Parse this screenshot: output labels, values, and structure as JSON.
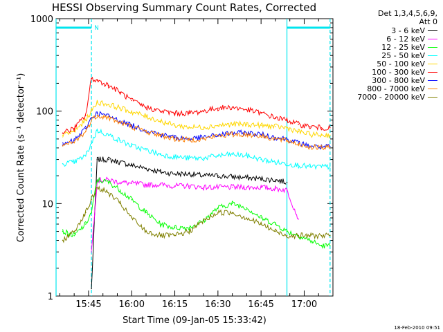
{
  "chart_data": {
    "type": "line",
    "title": "HESSI Observing Summary Count Rates, Corrected",
    "xlabel": "Start Time (09-Jan-05 15:33:42)",
    "ylabel": "Corrected Count Rate (s⁻¹ detector⁻¹)",
    "y_scale": "log",
    "ylim": [
      1,
      1000
    ],
    "xlim": [
      "15:33:42",
      "17:10:00"
    ],
    "x_tick_labels": [
      "15:45",
      "16:00",
      "16:15",
      "16:30",
      "16:45",
      "17:00"
    ],
    "y_tick_labels": [
      "1",
      "10",
      "100",
      "1000"
    ],
    "legend_header": [
      "Det 1,3,4,5,6,9,",
      "Att 0"
    ],
    "legend_position": "top-right",
    "markers": [
      {
        "type": "bar",
        "x_start": "15:33:42",
        "x_end": "15:46:00",
        "y": 800,
        "color": "#00e5ee",
        "label": "N"
      },
      {
        "type": "bar",
        "x_start": "16:54:00",
        "x_end": "17:09:00",
        "y": 800,
        "color": "#00e5ee",
        "label": ""
      }
    ],
    "vertical_lines": [
      {
        "x": "15:46:00",
        "style": "dashed",
        "color": "#00e5ee"
      },
      {
        "x": "16:54:00",
        "style": "solid",
        "color": "#00e5ee"
      },
      {
        "x": "17:09:00",
        "style": "dashed",
        "color": "#00e5ee"
      }
    ],
    "time_points": [
      "15:36",
      "15:40",
      "15:44",
      "15:46",
      "15:48",
      "15:52",
      "15:56",
      "16:00",
      "16:05",
      "16:10",
      "16:15",
      "16:20",
      "16:25",
      "16:30",
      "16:35",
      "16:40",
      "16:45",
      "16:50",
      "16:54",
      "16:58",
      "17:02",
      "17:06",
      "17:09"
    ],
    "series": [
      {
        "name": "3 - 6 keV",
        "color": "#000000",
        "values": [
          null,
          null,
          null,
          1.2,
          30,
          30,
          28,
          26,
          24,
          22,
          21,
          21,
          20,
          20,
          19.5,
          19,
          18.5,
          18,
          17,
          null,
          null,
          null,
          null
        ]
      },
      {
        "name": "6 - 12 keV",
        "color": "#ff00ff",
        "values": [
          null,
          null,
          null,
          3,
          18,
          18,
          17,
          16.5,
          16,
          16,
          15.5,
          15.5,
          15,
          15,
          15,
          15,
          15,
          14.5,
          14,
          6.8,
          null,
          null,
          null
        ]
      },
      {
        "name": "12 - 25 keV",
        "color": "#00ff00",
        "values": [
          5,
          4.5,
          6,
          8,
          18,
          17,
          14,
          11,
          8,
          6,
          5.5,
          5.5,
          6.5,
          9,
          10,
          9,
          7,
          6,
          5,
          4.5,
          4,
          3.5,
          3.5
        ]
      },
      {
        "name": "25 - 50 keV",
        "color": "#00ffff",
        "values": [
          27,
          28,
          33,
          45,
          62,
          55,
          48,
          42,
          38,
          34,
          32,
          31,
          31,
          33,
          34,
          33,
          30,
          28,
          27,
          26,
          25,
          25,
          25
        ]
      },
      {
        "name": "50 - 100 keV",
        "color": "#ffd700",
        "values": [
          55,
          60,
          80,
          100,
          125,
          118,
          108,
          98,
          88,
          78,
          70,
          67,
          67,
          70,
          72,
          72,
          70,
          68,
          66,
          60,
          56,
          55,
          55
        ]
      },
      {
        "name": "100 - 300 keV",
        "color": "#ff0000",
        "values": [
          58,
          65,
          90,
          225,
          215,
          190,
          160,
          130,
          110,
          100,
          95,
          95,
          100,
          108,
          110,
          104,
          95,
          85,
          80,
          72,
          68,
          66,
          66
        ]
      },
      {
        "name": "300 - 800 keV",
        "color": "#0000ff",
        "values": [
          43,
          48,
          65,
          85,
          95,
          88,
          78,
          70,
          62,
          56,
          52,
          50,
          52,
          55,
          58,
          58,
          56,
          52,
          50,
          45,
          42,
          41,
          41
        ]
      },
      {
        "name": "800 - 7000 keV",
        "color": "#ff8000",
        "values": [
          42,
          46,
          60,
          80,
          90,
          85,
          75,
          68,
          60,
          55,
          50,
          49,
          50,
          54,
          56,
          56,
          54,
          50,
          48,
          44,
          41,
          40,
          40
        ]
      },
      {
        "name": "7000 - 20000 keV",
        "color": "#808000",
        "values": [
          4,
          5,
          8,
          11,
          15,
          13,
          10,
          7,
          5,
          4.5,
          4.5,
          5,
          6.5,
          8,
          8,
          7,
          6,
          5,
          4.5,
          4.5,
          4.5,
          4.5,
          4.5
        ]
      }
    ]
  },
  "footer_timestamp": "18-Feb-2010 09:51"
}
